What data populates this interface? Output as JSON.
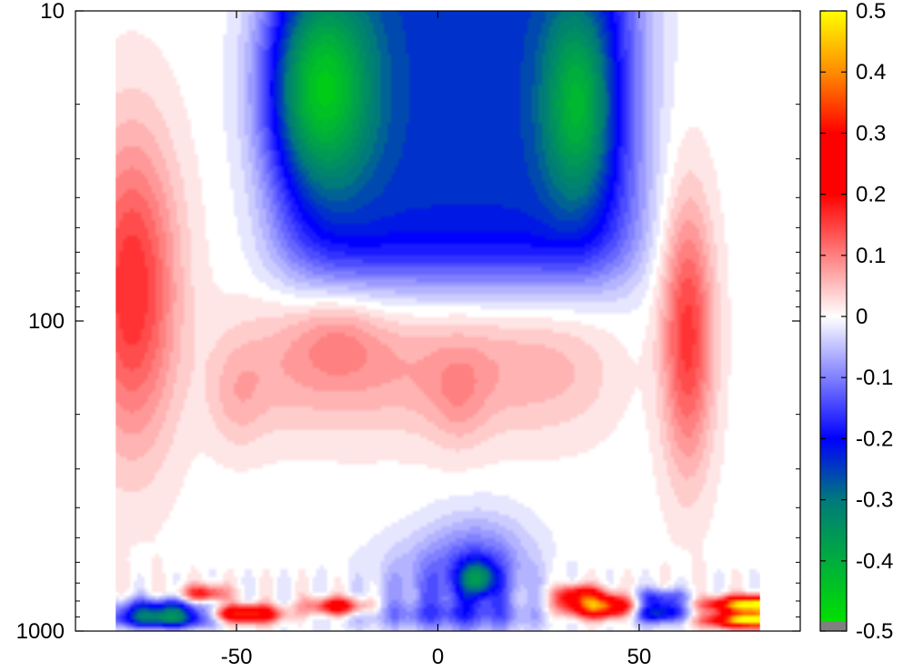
{
  "chart_data": {
    "type": "heatmap",
    "title": "",
    "xlabel": "",
    "ylabel": "",
    "x_range": [
      -80,
      80
    ],
    "xlim": [
      -90,
      90
    ],
    "xticks": [
      -50,
      0,
      50
    ],
    "xtick_labels": [
      "-50",
      "0",
      "50"
    ],
    "y_scale": "log",
    "ylim": [
      10,
      1000
    ],
    "y_reversed": true,
    "yticks": [
      10,
      100,
      1000
    ],
    "ytick_labels": [
      "10",
      "100",
      "1000"
    ],
    "colorbar": {
      "range": [
        -0.5,
        0.5
      ],
      "ticks": [
        0.5,
        0.4,
        0.3,
        0.2,
        0.1,
        0,
        -0.1,
        -0.2,
        -0.3,
        -0.4,
        -0.5
      ],
      "tick_labels": [
        "0.5",
        "0.4",
        "0.3",
        "0.2",
        "0.1",
        "0",
        "-0.1",
        "-0.2",
        "-0.3",
        "-0.4",
        "-0.5"
      ],
      "stops": [
        {
          "v": -0.5,
          "color": "#00e000"
        },
        {
          "v": -0.3,
          "color": "#007a7a"
        },
        {
          "v": -0.2,
          "color": "#0000ff"
        },
        {
          "v": 0.0,
          "color": "#ffffff"
        },
        {
          "v": 0.2,
          "color": "#ff0000"
        },
        {
          "v": 0.3,
          "color": "#ff0000"
        },
        {
          "v": 0.4,
          "color": "#ff8c00"
        },
        {
          "v": 0.5,
          "color": "#ffff00"
        }
      ],
      "under_color": "#808080"
    },
    "field_features": [
      {
        "lat": -30,
        "p": 18,
        "value": -0.48
      },
      {
        "lat": 35,
        "p": 20,
        "value": -0.42
      },
      {
        "lat": 5,
        "p": 25,
        "value": -0.25
      },
      {
        "lat": -75,
        "p": 80,
        "value": 0.17
      },
      {
        "lat": 62,
        "p": 110,
        "value": 0.17
      },
      {
        "lat": -25,
        "p": 110,
        "value": 0.1
      },
      {
        "lat": 10,
        "p": 680,
        "value": -0.4
      },
      {
        "lat": -68,
        "p": 860,
        "value": -0.25
      },
      {
        "lat": -68,
        "p": 920,
        "value": -0.3
      },
      {
        "lat": -48,
        "p": 880,
        "value": 0.45
      },
      {
        "lat": 40,
        "p": 830,
        "value": 0.45
      },
      {
        "lat": 55,
        "p": 870,
        "value": -0.3
      },
      {
        "lat": 78,
        "p": 820,
        "value": 0.5
      },
      {
        "lat": 78,
        "p": 920,
        "value": 0.5
      }
    ]
  }
}
